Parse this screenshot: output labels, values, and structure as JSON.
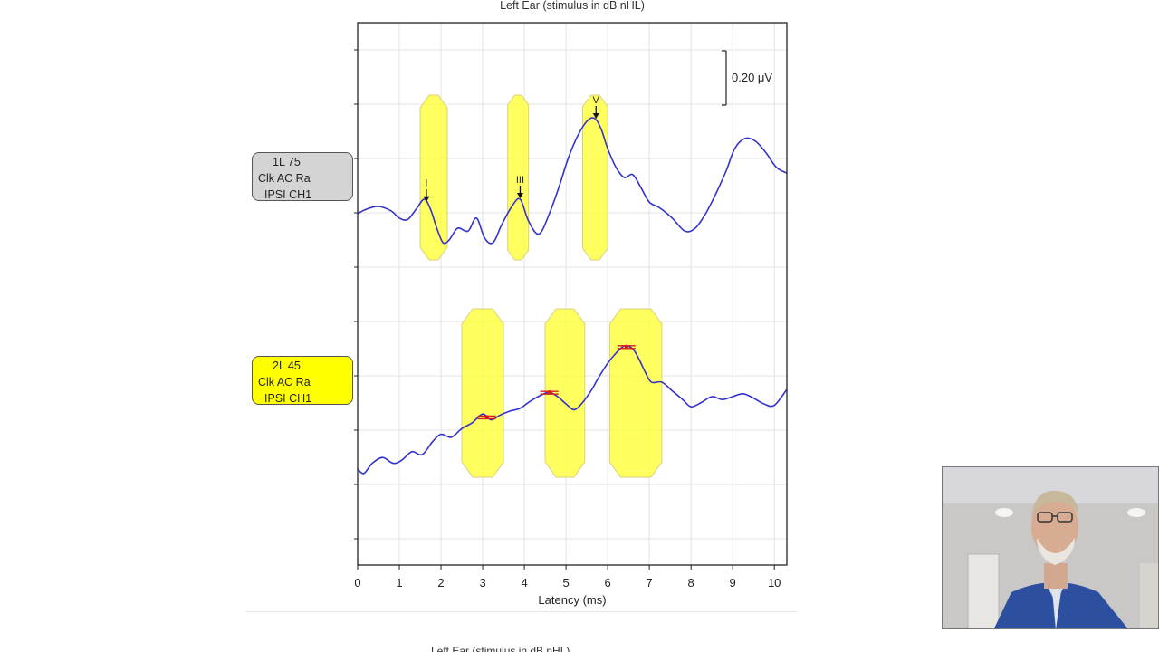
{
  "chart_data": {
    "type": "line",
    "title": "Left Ear (stimulus in dB nHL)",
    "xlabel": "Latency (ms)",
    "ylabel": "",
    "xlim": [
      0,
      10.3
    ],
    "xticks": [
      0,
      1,
      2,
      3,
      4,
      5,
      6,
      7,
      8,
      9,
      10
    ],
    "scale_bar_label": "0.20 μV",
    "grid": true,
    "series": [
      {
        "name": "1L 75",
        "label_lines": [
          "1L 75",
          "Clk AC Ra",
          "IPSI CH1"
        ],
        "color": "#3333cc",
        "label_bg": "#d4d4d4",
        "x": [
          0,
          0.2,
          0.5,
          0.8,
          1.0,
          1.2,
          1.4,
          1.6,
          1.75,
          1.9,
          2.05,
          2.2,
          2.4,
          2.65,
          2.85,
          3.05,
          3.25,
          3.45,
          3.7,
          3.9,
          4.1,
          4.35,
          4.6,
          4.85,
          5.05,
          5.25,
          5.45,
          5.6,
          5.72,
          5.85,
          6.0,
          6.2,
          6.4,
          6.6,
          6.8,
          7.0,
          7.25,
          7.55,
          7.85,
          8.1,
          8.35,
          8.6,
          8.85,
          9.05,
          9.3,
          9.55,
          9.8,
          10.05,
          10.3
        ],
        "y": [
          0.0,
          0.03,
          0.05,
          0.02,
          -0.03,
          -0.04,
          0.03,
          0.1,
          0.03,
          -0.1,
          -0.2,
          -0.18,
          -0.1,
          -0.12,
          -0.03,
          -0.17,
          -0.2,
          -0.08,
          0.05,
          0.1,
          -0.05,
          -0.14,
          0.0,
          0.2,
          0.38,
          0.52,
          0.62,
          0.66,
          0.65,
          0.58,
          0.45,
          0.32,
          0.25,
          0.27,
          0.18,
          0.08,
          0.04,
          -0.03,
          -0.12,
          -0.1,
          0.0,
          0.14,
          0.3,
          0.45,
          0.52,
          0.5,
          0.42,
          0.32,
          0.28
        ]
      },
      {
        "name": "2L 45",
        "label_lines": [
          "2L 45",
          "Clk AC Ra",
          "IPSI CH1"
        ],
        "color": "#3333cc",
        "label_bg": "#ffff00",
        "x": [
          0,
          0.15,
          0.35,
          0.6,
          0.85,
          1.05,
          1.3,
          1.55,
          1.8,
          2.0,
          2.25,
          2.5,
          2.75,
          3.0,
          3.2,
          3.4,
          3.65,
          3.9,
          4.15,
          4.4,
          4.6,
          4.8,
          5.0,
          5.2,
          5.4,
          5.6,
          5.8,
          6.0,
          6.2,
          6.4,
          6.6,
          6.75,
          6.9,
          7.05,
          7.3,
          7.55,
          7.8,
          8.0,
          8.25,
          8.5,
          8.75,
          9.0,
          9.25,
          9.5,
          9.75,
          10.0,
          10.3
        ],
        "y": [
          -0.3,
          -0.33,
          -0.26,
          -0.22,
          -0.26,
          -0.24,
          -0.18,
          -0.2,
          -0.11,
          -0.06,
          -0.08,
          -0.02,
          0.02,
          0.08,
          0.04,
          0.07,
          0.1,
          0.12,
          0.17,
          0.21,
          0.23,
          0.2,
          0.15,
          0.11,
          0.16,
          0.24,
          0.34,
          0.43,
          0.5,
          0.55,
          0.53,
          0.46,
          0.37,
          0.3,
          0.3,
          0.24,
          0.18,
          0.13,
          0.16,
          0.2,
          0.18,
          0.2,
          0.22,
          0.19,
          0.15,
          0.14,
          0.25
        ]
      }
    ],
    "peak_windows": [
      {
        "trace": 1,
        "x_from": 1.5,
        "x_to": 2.15
      },
      {
        "trace": 1,
        "x_from": 3.6,
        "x_to": 4.1
      },
      {
        "trace": 1,
        "x_from": 5.4,
        "x_to": 6.0
      },
      {
        "trace": 2,
        "x_from": 2.5,
        "x_to": 3.5
      },
      {
        "trace": 2,
        "x_from": 4.5,
        "x_to": 5.45
      },
      {
        "trace": 2,
        "x_from": 6.05,
        "x_to": 7.3
      }
    ],
    "peak_markers": [
      {
        "trace": 1,
        "label": "I",
        "x": 1.65
      },
      {
        "trace": 1,
        "label": "III",
        "x": 3.9
      },
      {
        "trace": 1,
        "label": "V",
        "x": 5.72
      }
    ],
    "red_marks": [
      {
        "trace": 2,
        "x": 3.1
      },
      {
        "trace": 2,
        "x": 4.6
      },
      {
        "trace": 2,
        "x": 6.45
      }
    ]
  },
  "next_chart_title": "Left Ear (stimulus in dB nHL)"
}
